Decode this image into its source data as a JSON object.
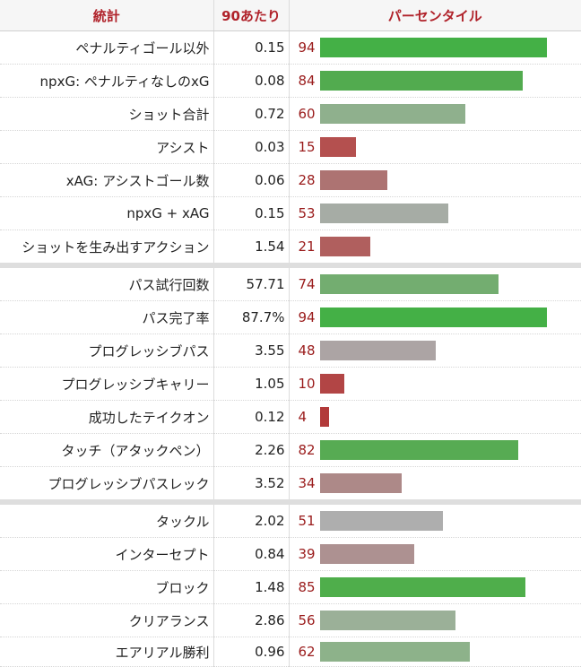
{
  "headers": {
    "stat": "統計",
    "per90": "90あたり",
    "percentile": "パーセンタイル"
  },
  "groups": [
    {
      "rows": [
        {
          "stat": "ペナルティゴール以外",
          "per90": "0.15",
          "pct": "94",
          "percentile": 94,
          "color": "#44b046"
        },
        {
          "stat": "npxG: ペナルティなしのxG",
          "per90": "0.08",
          "pct": "84",
          "percentile": 84,
          "color": "#52ab4f"
        },
        {
          "stat": "ショット合計",
          "per90": "0.72",
          "pct": "60",
          "percentile": 60,
          "color": "#8fb08d"
        },
        {
          "stat": "アシスト",
          "per90": "0.03",
          "pct": "15",
          "percentile": 15,
          "color": "#b4504f"
        },
        {
          "stat": "xAG: アシストゴール数",
          "per90": "0.06",
          "pct": "28",
          "percentile": 28,
          "color": "#ad7372"
        },
        {
          "stat": "npxG + xAG",
          "per90": "0.15",
          "pct": "53",
          "percentile": 53,
          "color": "#a6aca5"
        },
        {
          "stat": "ショットを生み出すアクション",
          "per90": "1.54",
          "pct": "21",
          "percentile": 21,
          "color": "#b05f5e"
        }
      ]
    },
    {
      "rows": [
        {
          "stat": "パス試行回数",
          "per90": "57.71",
          "pct": "74",
          "percentile": 74,
          "color": "#73ad70"
        },
        {
          "stat": "パス完了率",
          "per90": "87.7%",
          "pct": "94",
          "percentile": 94,
          "color": "#44b046"
        },
        {
          "stat": "プログレッシブパス",
          "per90": "3.55",
          "pct": "48",
          "percentile": 48,
          "color": "#aca4a4"
        },
        {
          "stat": "プログレッシブキャリー",
          "per90": "1.05",
          "pct": "10",
          "percentile": 10,
          "color": "#b24545"
        },
        {
          "stat": "成功したテイクオン",
          "per90": "0.12",
          "pct": "4",
          "percentile": 4,
          "color": "#b23a3a"
        },
        {
          "stat": "タッチ（アタックペン）",
          "per90": "2.26",
          "pct": "82",
          "percentile": 82,
          "color": "#57ab53"
        },
        {
          "stat": "プログレッシブパスレック",
          "per90": "3.52",
          "pct": "34",
          "percentile": 34,
          "color": "#ad8988"
        }
      ]
    },
    {
      "rows": [
        {
          "stat": "タックル",
          "per90": "2.02",
          "pct": "51",
          "percentile": 51,
          "color": "#aeaeae"
        },
        {
          "stat": "インターセプト",
          "per90": "0.84",
          "pct": "39",
          "percentile": 39,
          "color": "#ad9191"
        },
        {
          "stat": "ブロック",
          "per90": "1.48",
          "pct": "85",
          "percentile": 85,
          "color": "#4fae4b"
        },
        {
          "stat": "クリアランス",
          "per90": "2.86",
          "pct": "56",
          "percentile": 56,
          "color": "#9bb098"
        },
        {
          "stat": "エアリアル勝利",
          "per90": "0.96",
          "pct": "62",
          "percentile": 62,
          "color": "#8db28a"
        }
      ]
    }
  ]
}
